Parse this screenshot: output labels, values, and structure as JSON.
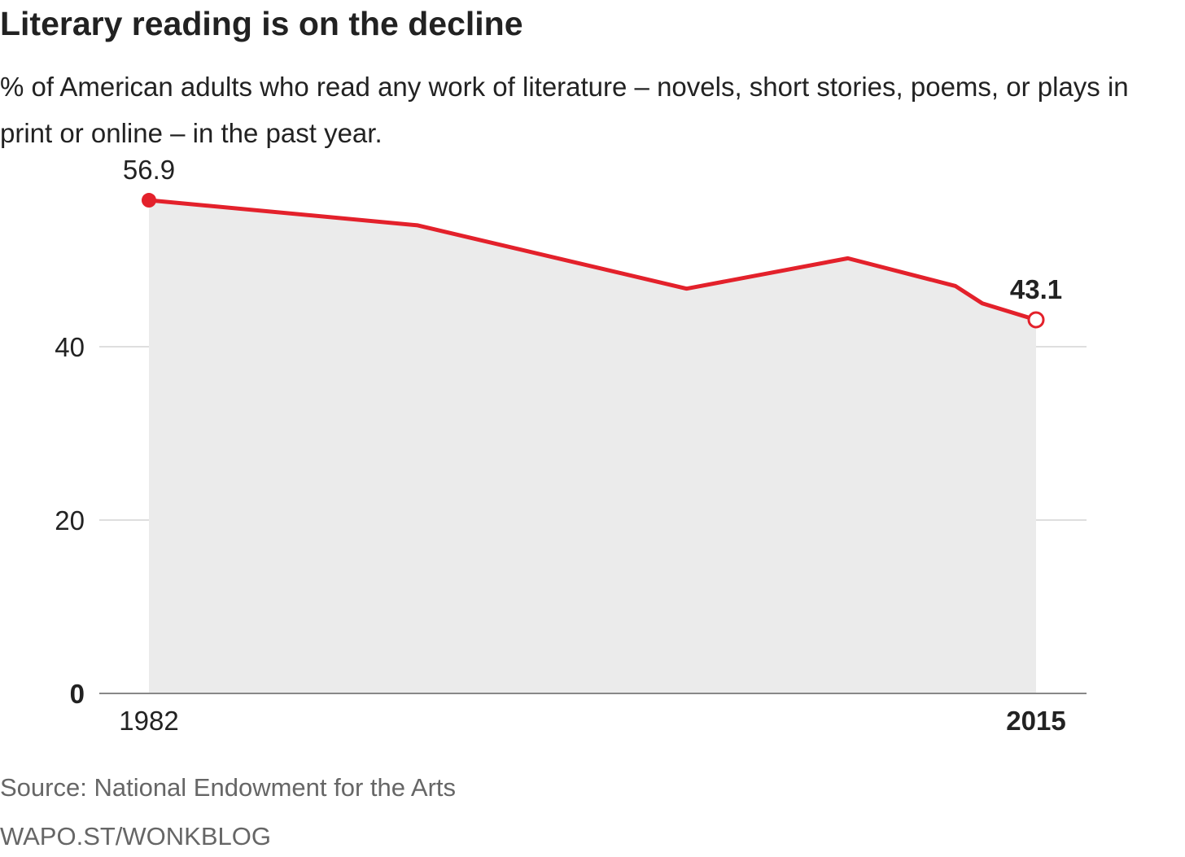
{
  "chart_data": {
    "type": "area",
    "title": "Literary reading is on the decline",
    "subtitle": "% of American adults who read any work of literature – novels, short stories, poems, or plays in print or online – in the past year.",
    "x": [
      1982,
      1992,
      2002,
      2008,
      2012,
      2013,
      2015
    ],
    "y": [
      56.9,
      54.0,
      46.7,
      50.2,
      47.0,
      45.0,
      43.1
    ],
    "x_ticks": [
      "1982",
      "2015"
    ],
    "y_ticks": [
      "0",
      "20",
      "40"
    ],
    "ylim": [
      0,
      60
    ],
    "xlabel": "",
    "ylabel": "",
    "start_label": "56.9",
    "end_label": "43.1",
    "grid": true,
    "colors": {
      "line": "#e3212b",
      "area": "#ebebeb",
      "grid": "#d4d4d4",
      "axis": "#888888"
    }
  },
  "footer": {
    "source": "Source: National Endowment for the Arts",
    "credit": "WAPO.ST/WONKBLOG"
  }
}
